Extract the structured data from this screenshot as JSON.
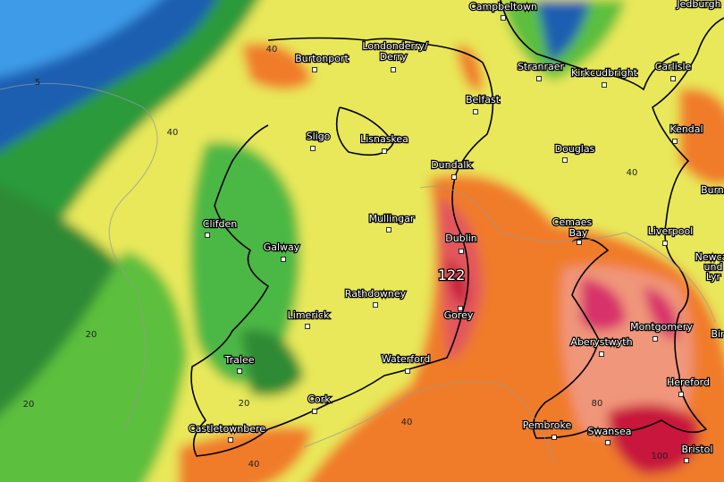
{
  "places": [
    {
      "label": "Campbeltown"
    },
    {
      "label": "Jedburgh"
    },
    {
      "label": "Londonderry/"
    },
    {
      "label": "Derry"
    },
    {
      "label": "Burtonport"
    },
    {
      "label": "Stranraer"
    },
    {
      "label": "Kirkcudbright"
    },
    {
      "label": "Carlisle"
    },
    {
      "label": "Belfast"
    },
    {
      "label": "Sligo"
    },
    {
      "label": "Lisnaskea"
    },
    {
      "label": "Kendal"
    },
    {
      "label": "Douglas"
    },
    {
      "label": "Dundalk"
    },
    {
      "label": "Burn"
    },
    {
      "label": "Clifden"
    },
    {
      "label": "Mullingar"
    },
    {
      "label": "Cemaes"
    },
    {
      "label": "Bay"
    },
    {
      "label": "Liverpool"
    },
    {
      "label": "Galway"
    },
    {
      "label": "Dublin"
    },
    {
      "label": "Newca"
    },
    {
      "label": "und"
    },
    {
      "label": "Lyr"
    },
    {
      "label": "122"
    },
    {
      "label": "Rathdowney"
    },
    {
      "label": "Gorey"
    },
    {
      "label": "Limerick"
    },
    {
      "label": "Montgomery"
    },
    {
      "label": "Aberystwyth"
    },
    {
      "label": "Bir"
    },
    {
      "label": "Tralee"
    },
    {
      "label": "Waterford"
    },
    {
      "label": "Hereford"
    },
    {
      "label": "Cork"
    },
    {
      "label": "Castletownbere"
    },
    {
      "label": "Pembroke"
    },
    {
      "label": "Swansea"
    },
    {
      "label": "Bristol"
    }
  ],
  "contours": [
    "5",
    "40",
    "40",
    "40",
    "20",
    "20",
    "20",
    "40",
    "80",
    "100",
    "40"
  ]
}
